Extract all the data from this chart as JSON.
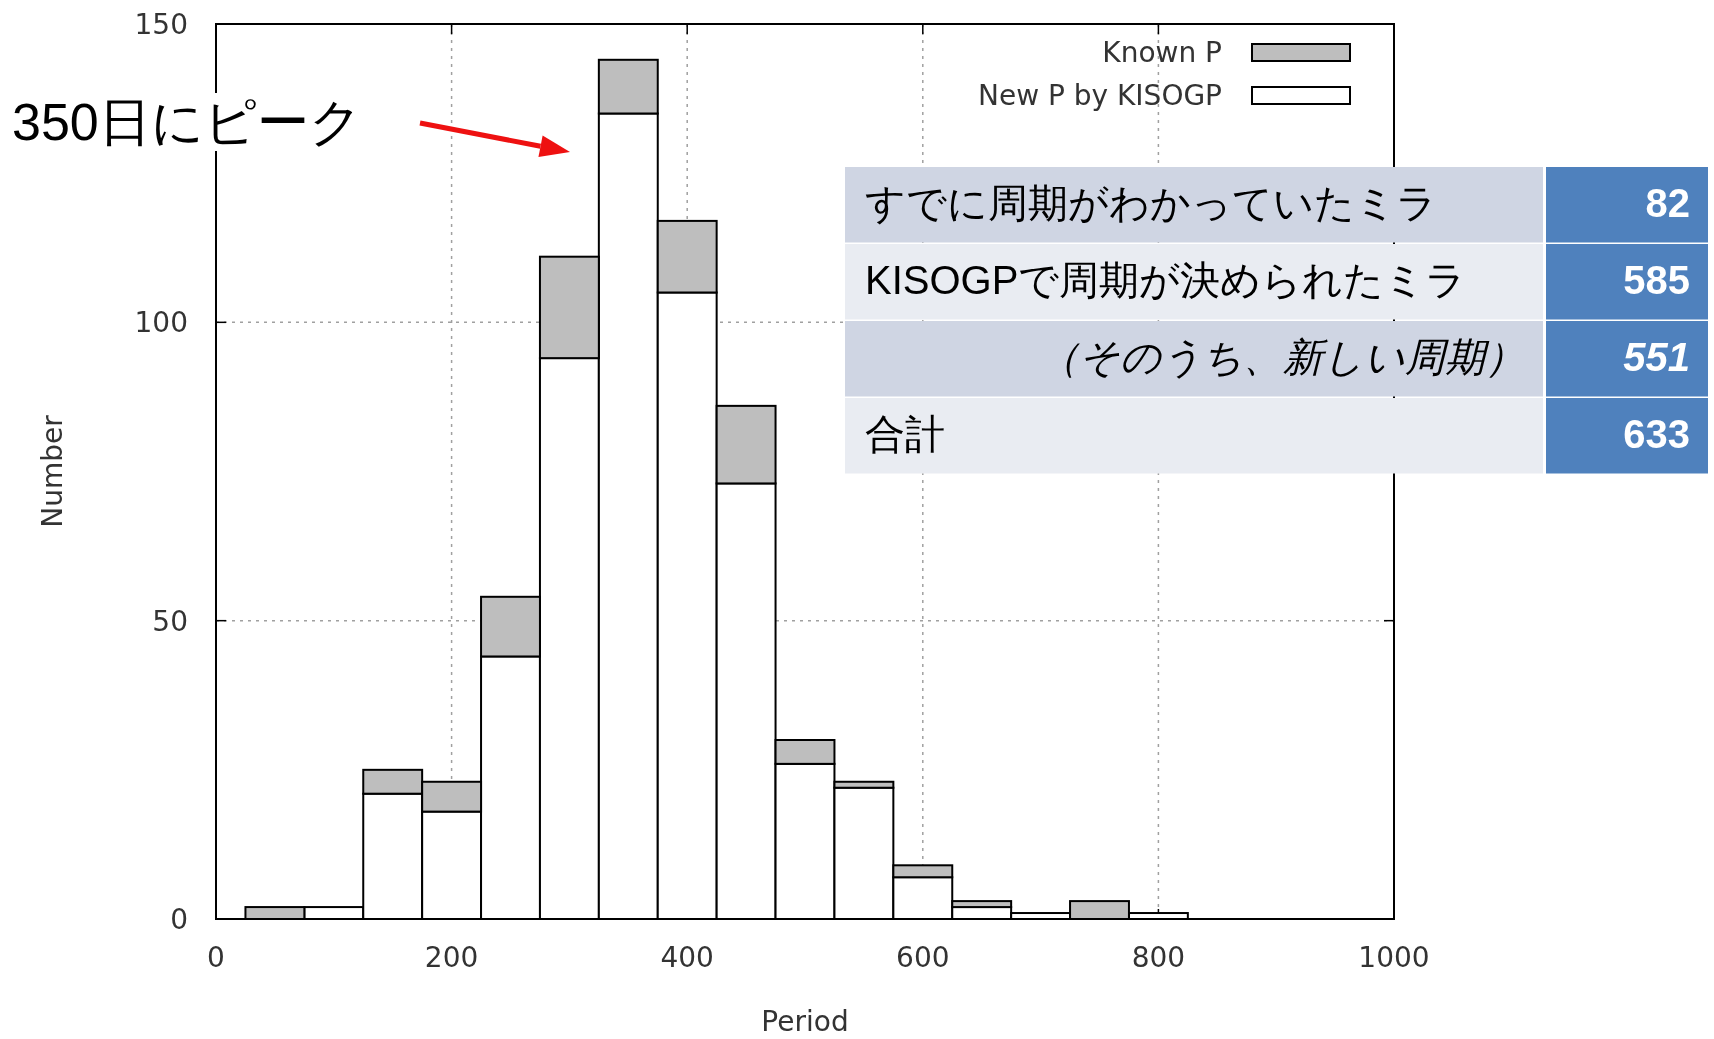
{
  "chart_data": [
    {
      "type": "bar",
      "xlabel": "Period",
      "ylabel": "Number",
      "x": [
        50,
        100,
        150,
        200,
        250,
        300,
        350,
        400,
        450,
        500,
        550,
        600,
        650,
        700,
        750,
        800
      ],
      "stacked": true,
      "series": [
        {
          "name": "New P by KISOGP",
          "color": "#ffffff",
          "values": [
            0,
            2,
            21,
            18,
            44,
            94,
            135,
            105,
            73,
            26,
            22,
            7,
            2,
            1,
            0,
            1
          ]
        },
        {
          "name": "Known P",
          "color": "#bebebe",
          "values": [
            2,
            0,
            4,
            5,
            10,
            17,
            9,
            12,
            13,
            4,
            1,
            2,
            1,
            0,
            3,
            0
          ]
        }
      ],
      "xlim": [
        0,
        1000
      ],
      "xticks": [
        0,
        200,
        400,
        600,
        800,
        1000
      ],
      "ylim": [
        0,
        150
      ],
      "yticks": [
        0,
        50,
        100,
        150
      ],
      "grid": true,
      "legend": "top right",
      "annotations": [
        "350日にピーク"
      ]
    },
    {
      "type": "other",
      "categories": [
        "すでに周期がわかっていたミラ",
        "KISOGPで周期が決められたミラ",
        "（そのうち、新しい周期）",
        "合計"
      ],
      "values": [
        82,
        585,
        551,
        633
      ],
      "colors": [
        "#4f81bd",
        "#4f81bd",
        "#4f81bd",
        "#4f81bd"
      ],
      "data_labels": true
    }
  ]
}
